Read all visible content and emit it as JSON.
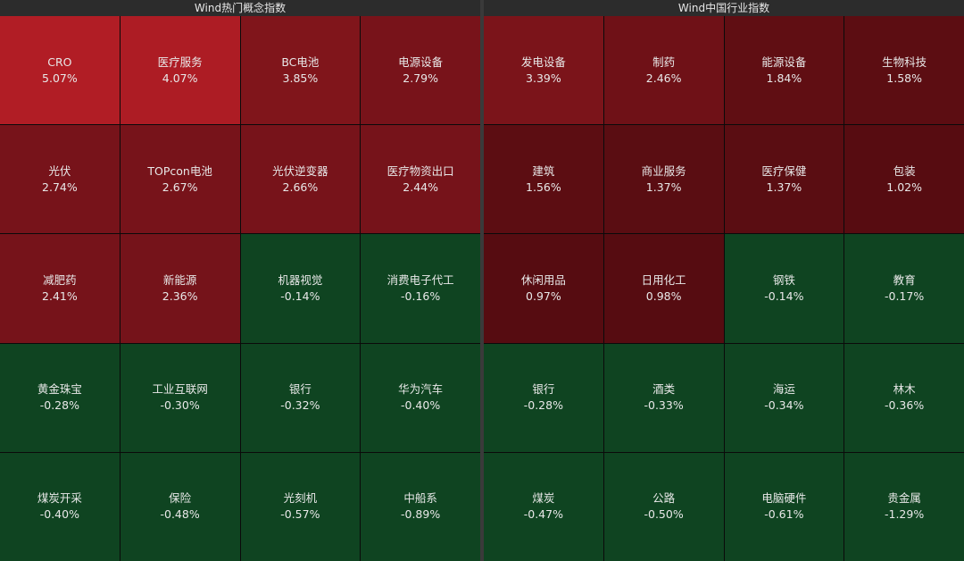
{
  "panels": [
    {
      "title": "Wind热门概念指数",
      "tiles": [
        {
          "name": "CRO",
          "change": "5.07%",
          "color": "#b11d25"
        },
        {
          "name": "医疗服务",
          "change": "4.07%",
          "color": "#ad1c24"
        },
        {
          "name": "BC电池",
          "change": "3.85%",
          "color": "#80151b"
        },
        {
          "name": "电源设备",
          "change": "2.79%",
          "color": "#78131a"
        },
        {
          "name": "光伏",
          "change": "2.74%",
          "color": "#77131a"
        },
        {
          "name": "TOPcon电池",
          "change": "2.67%",
          "color": "#77131a"
        },
        {
          "name": "光伏逆变器",
          "change": "2.66%",
          "color": "#77131a"
        },
        {
          "name": "医疗物资出口",
          "change": "2.44%",
          "color": "#76131a"
        },
        {
          "name": "减肥药",
          "change": "2.41%",
          "color": "#76131a"
        },
        {
          "name": "新能源",
          "change": "2.36%",
          "color": "#75131a"
        },
        {
          "name": "机器视觉",
          "change": "-0.14%",
          "color": "#0f4421"
        },
        {
          "name": "消费电子代工",
          "change": "-0.16%",
          "color": "#0f4421"
        },
        {
          "name": "黄金珠宝",
          "change": "-0.28%",
          "color": "#0f4421"
        },
        {
          "name": "工业互联网",
          "change": "-0.30%",
          "color": "#0f4421"
        },
        {
          "name": "银行",
          "change": "-0.32%",
          "color": "#0f4421"
        },
        {
          "name": "华为汽车",
          "change": "-0.40%",
          "color": "#0f4421"
        },
        {
          "name": "煤炭开采",
          "change": "-0.40%",
          "color": "#0f4421"
        },
        {
          "name": "保险",
          "change": "-0.48%",
          "color": "#0f4421"
        },
        {
          "name": "光刻机",
          "change": "-0.57%",
          "color": "#0f4421"
        },
        {
          "name": "中船系",
          "change": "-0.89%",
          "color": "#0f4421"
        }
      ]
    },
    {
      "title": "Wind中国行业指数",
      "tiles": [
        {
          "name": "发电设备",
          "change": "3.39%",
          "color": "#7b141a"
        },
        {
          "name": "制药",
          "change": "2.46%",
          "color": "#6f1117"
        },
        {
          "name": "能源设备",
          "change": "1.84%",
          "color": "#600e13"
        },
        {
          "name": "生物科技",
          "change": "1.58%",
          "color": "#5c0d12"
        },
        {
          "name": "建筑",
          "change": "1.56%",
          "color": "#5c0d12"
        },
        {
          "name": "商业服务",
          "change": "1.37%",
          "color": "#5a0d12"
        },
        {
          "name": "医疗保健",
          "change": "1.37%",
          "color": "#5a0d12"
        },
        {
          "name": "包装",
          "change": "1.02%",
          "color": "#570c11"
        },
        {
          "name": "休闲用品",
          "change": "0.97%",
          "color": "#560c11"
        },
        {
          "name": "日用化工",
          "change": "0.98%",
          "color": "#560c11"
        },
        {
          "name": "钢铁",
          "change": "-0.14%",
          "color": "#0f4421"
        },
        {
          "name": "教育",
          "change": "-0.17%",
          "color": "#0f4421"
        },
        {
          "name": "银行",
          "change": "-0.28%",
          "color": "#0f4421"
        },
        {
          "name": "酒类",
          "change": "-0.33%",
          "color": "#0f4421"
        },
        {
          "name": "海运",
          "change": "-0.34%",
          "color": "#0f4421"
        },
        {
          "name": "林木",
          "change": "-0.36%",
          "color": "#0f4421"
        },
        {
          "name": "煤炭",
          "change": "-0.47%",
          "color": "#0f4421"
        },
        {
          "name": "公路",
          "change": "-0.50%",
          "color": "#0f4421"
        },
        {
          "name": "电脑硬件",
          "change": "-0.61%",
          "color": "#0f4421"
        },
        {
          "name": "贵金属",
          "change": "-1.29%",
          "color": "#0f4421"
        }
      ]
    }
  ]
}
